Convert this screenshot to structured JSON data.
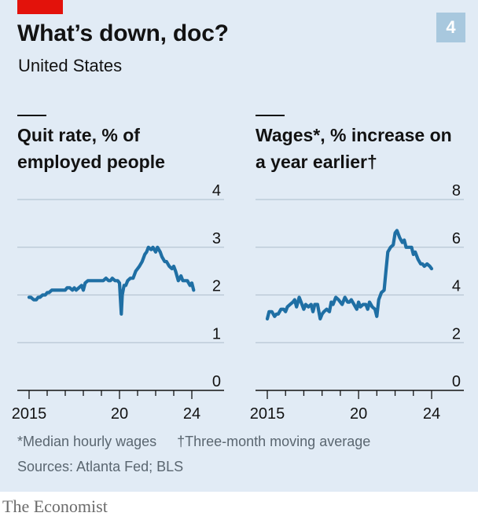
{
  "header": {
    "title": "What’s down, doc?",
    "subtitle": "United States",
    "chart_number": "4"
  },
  "footer": {
    "footnote_1": "*Median hourly wages",
    "footnote_2": "†Three-month moving average",
    "sources": "Sources: Atlanta Fed; BLS",
    "brand": "The Economist"
  },
  "colors": {
    "background": "#e1ebf5",
    "line": "#1f6fa4",
    "accent": "#e3120b",
    "badge": "#a8c8de"
  },
  "chart_data": [
    {
      "type": "line",
      "title": "Quit rate, % of employed people",
      "ylim": [
        0,
        4
      ],
      "y_ticks": [
        "0",
        "1",
        "2",
        "3",
        "4"
      ],
      "xlim": [
        2014.5,
        2024.5
      ],
      "x_tick_labels": [
        "2015",
        "20",
        "24"
      ],
      "grid": true,
      "series": [
        {
          "x": [
            2015.0,
            2015.1,
            2015.25,
            2015.4,
            2015.5,
            2015.6,
            2015.75,
            2015.9,
            2016.0,
            2016.1,
            2016.25,
            2016.5,
            2016.75,
            2017.0,
            2017.1,
            2017.25,
            2017.4,
            2017.5,
            2017.6,
            2017.75,
            2017.9,
            2018.0,
            2018.1,
            2018.25,
            2018.5,
            2018.75,
            2019.0,
            2019.1,
            2019.25,
            2019.4,
            2019.5,
            2019.6,
            2019.75,
            2019.9,
            2020.0,
            2020.1,
            2020.15,
            2020.25,
            2020.35,
            2020.45,
            2020.6,
            2020.75,
            2020.9,
            2021.0,
            2021.1,
            2021.25,
            2021.4,
            2021.5,
            2021.6,
            2021.75,
            2021.85,
            2022.0,
            2022.1,
            2022.25,
            2022.35,
            2022.5,
            2022.6,
            2022.75,
            2022.9,
            2023.0,
            2023.1,
            2023.25,
            2023.4,
            2023.5,
            2023.6,
            2023.75,
            2023.9,
            2024.0,
            2024.1
          ],
          "values": [
            1.95,
            1.95,
            1.9,
            1.9,
            1.95,
            1.95,
            2.0,
            2.0,
            2.05,
            2.05,
            2.1,
            2.1,
            2.1,
            2.1,
            2.15,
            2.15,
            2.1,
            2.15,
            2.1,
            2.15,
            2.2,
            2.1,
            2.25,
            2.3,
            2.3,
            2.3,
            2.3,
            2.3,
            2.35,
            2.3,
            2.3,
            2.35,
            2.3,
            2.3,
            2.25,
            1.6,
            2.0,
            2.2,
            2.2,
            2.3,
            2.35,
            2.35,
            2.5,
            2.55,
            2.6,
            2.7,
            2.85,
            2.9,
            3.0,
            2.95,
            3.0,
            2.9,
            3.0,
            2.9,
            2.8,
            2.7,
            2.7,
            2.6,
            2.55,
            2.6,
            2.5,
            2.3,
            2.4,
            2.3,
            2.3,
            2.3,
            2.2,
            2.25,
            2.1
          ]
        }
      ]
    },
    {
      "type": "line",
      "title": "Wages*, % increase on a year earlier†",
      "ylim": [
        0,
        8
      ],
      "y_ticks": [
        "0",
        "2",
        "4",
        "6",
        "8"
      ],
      "xlim": [
        2014.5,
        2024.5
      ],
      "x_tick_labels": [
        "2015",
        "20",
        "24"
      ],
      "grid": true,
      "series": [
        {
          "x": [
            2015.0,
            2015.1,
            2015.25,
            2015.4,
            2015.5,
            2015.6,
            2015.75,
            2015.9,
            2016.0,
            2016.1,
            2016.25,
            2016.4,
            2016.5,
            2016.6,
            2016.75,
            2016.9,
            2017.0,
            2017.1,
            2017.25,
            2017.4,
            2017.5,
            2017.6,
            2017.75,
            2017.9,
            2018.0,
            2018.1,
            2018.25,
            2018.4,
            2018.5,
            2018.6,
            2018.75,
            2018.9,
            2019.0,
            2019.1,
            2019.25,
            2019.4,
            2019.5,
            2019.6,
            2019.75,
            2019.9,
            2020.0,
            2020.1,
            2020.25,
            2020.4,
            2020.5,
            2020.6,
            2020.75,
            2020.9,
            2021.0,
            2021.1,
            2021.25,
            2021.4,
            2021.5,
            2021.6,
            2021.75,
            2021.9,
            2022.0,
            2022.1,
            2022.25,
            2022.4,
            2022.5,
            2022.6,
            2022.75,
            2022.9,
            2023.0,
            2023.1,
            2023.25,
            2023.4,
            2023.5,
            2023.6,
            2023.75,
            2023.9,
            2024.0
          ],
          "values": [
            3.0,
            3.3,
            3.3,
            3.1,
            3.2,
            3.2,
            3.4,
            3.4,
            3.3,
            3.5,
            3.6,
            3.7,
            3.8,
            3.5,
            3.9,
            3.6,
            3.4,
            3.6,
            3.5,
            3.6,
            3.3,
            3.6,
            3.6,
            3.0,
            3.2,
            3.3,
            3.4,
            3.3,
            3.7,
            3.6,
            3.9,
            3.8,
            3.7,
            3.6,
            3.9,
            3.7,
            3.7,
            3.8,
            3.6,
            3.4,
            3.7,
            3.5,
            3.6,
            3.6,
            3.4,
            3.7,
            3.5,
            3.4,
            3.1,
            3.8,
            4.1,
            4.2,
            5.0,
            5.8,
            6.0,
            6.1,
            6.6,
            6.7,
            6.4,
            6.2,
            6.3,
            6.0,
            6.0,
            6.0,
            5.7,
            5.8,
            5.5,
            5.3,
            5.3,
            5.2,
            5.3,
            5.2,
            5.1
          ]
        }
      ]
    }
  ]
}
